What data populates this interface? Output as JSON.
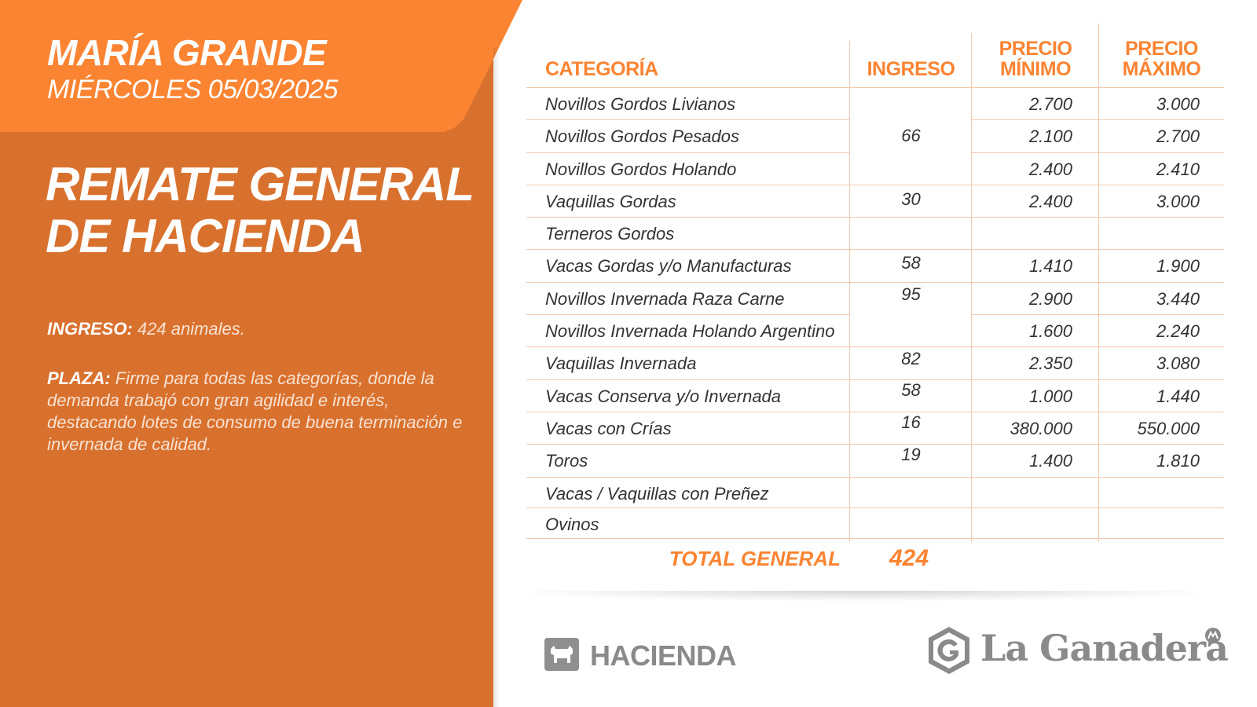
{
  "header": {
    "location": "MARÍA GRANDE",
    "date": "MIÉRCOLES 05/03/2025",
    "title_line1": "REMATE GENERAL",
    "title_line2": "DE HACIENDA"
  },
  "summary": {
    "ingreso_label": "INGRESO:",
    "ingreso_text": " 424 animales.",
    "plaza_label": "PLAZA:",
    "plaza_text": " Firme para todas las categorías, donde la demanda trabajó con gran agilidad e interés, destacando lotes de consumo de buena terminación e invernada de calidad."
  },
  "table": {
    "headers": {
      "categoria": "CATEGORÍA",
      "ingreso": "INGRESO",
      "precio_min_1": "PRECIO",
      "precio_min_2": "MÍNIMO",
      "precio_max_1": "PRECIO",
      "precio_max_2": "MÁXIMO"
    },
    "rows": [
      {
        "categoria": "Novillos Gordos Livianos",
        "min": "2.700",
        "max": "3.000"
      },
      {
        "categoria": "Novillos Gordos Pesados",
        "min": "2.100",
        "max": "2.700"
      },
      {
        "categoria": "Novillos Gordos Holando",
        "min": "2.400",
        "max": "2.410"
      },
      {
        "categoria": "Vaquillas Gordas",
        "min": "2.400",
        "max": "3.000"
      },
      {
        "categoria": "Terneros Gordos",
        "min": "",
        "max": ""
      },
      {
        "categoria": "Vacas Gordas y/o Manufacturas",
        "min": "1.410",
        "max": "1.900"
      },
      {
        "categoria": "Novillos Invernada Raza Carne",
        "min": "2.900",
        "max": "3.440"
      },
      {
        "categoria": "Novillos Invernada Holando Argentino",
        "min": "1.600",
        "max": "2.240"
      },
      {
        "categoria": "Vaquillas Invernada",
        "min": "2.350",
        "max": "3.080"
      },
      {
        "categoria": "Vacas Conserva y/o Invernada",
        "min": "1.000",
        "max": "1.440"
      },
      {
        "categoria": "Vacas con Crías",
        "min": "380.000",
        "max": "550.000"
      },
      {
        "categoria": "Toros",
        "min": "1.400",
        "max": "1.810"
      },
      {
        "categoria": "Vacas / Vaquillas con Preñez",
        "min": "",
        "max": ""
      },
      {
        "categoria": "Ovinos",
        "min": "",
        "max": ""
      }
    ],
    "ingreso_values": {
      "novillos_gordos": "66",
      "vaquillas_gordas": "30",
      "vacas_gordas": "58",
      "novillos_invernada": "95",
      "vaquillas_invernada": "82",
      "vacas_conserva": "58",
      "vacas_con_crias": "16",
      "toros": "19"
    },
    "total_label": "TOTAL GENERAL",
    "total_value": "424"
  },
  "footer": {
    "section_label": "HACIENDA",
    "brand_name": "La Ganadera",
    "hacienda_icon": "cow-icon",
    "brand_icon": "g-shield-icon"
  },
  "colors": {
    "accent": "#fb8432",
    "panel": "#d9712e",
    "grey": "#8a8a8a"
  }
}
